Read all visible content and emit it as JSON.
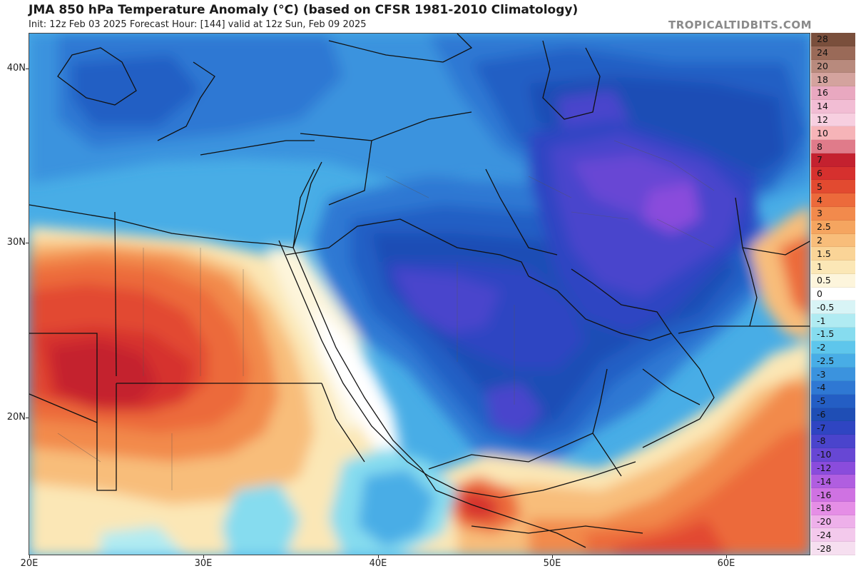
{
  "header": {
    "title": "JMA 850 hPa Temperature Anomaly (°C) (based on CFSR 1981-2010 Climatology)",
    "subtitle": "Init: 12z Feb 03 2025   Forecast Hour: [144]   valid at 12z Sun, Feb 09 2025",
    "watermark": "TROPICALTIDBITS.COM"
  },
  "axes": {
    "lat_labels": [
      "40N",
      "30N",
      "20N"
    ],
    "lon_labels": [
      "20E",
      "30E",
      "40E",
      "50E",
      "60E"
    ]
  },
  "colorbar": {
    "levels": [
      {
        "label": "28",
        "color": "#7a4f3c"
      },
      {
        "label": "24",
        "color": "#9a6a58"
      },
      {
        "label": "20",
        "color": "#b88a7d"
      },
      {
        "label": "18",
        "color": "#d4a39e"
      },
      {
        "label": "16",
        "color": "#e9a8c0"
      },
      {
        "label": "14",
        "color": "#f2bdd4"
      },
      {
        "label": "12",
        "color": "#f7cfe0"
      },
      {
        "label": "10",
        "color": "#f6b4b8"
      },
      {
        "label": "8",
        "color": "#e07b8a"
      },
      {
        "label": "7",
        "color": "#c4212f"
      },
      {
        "label": "6",
        "color": "#d6302e"
      },
      {
        "label": "5",
        "color": "#e24a30"
      },
      {
        "label": "4",
        "color": "#ec6a3b"
      },
      {
        "label": "3",
        "color": "#f28a4c"
      },
      {
        "label": "2.5",
        "color": "#f5a560"
      },
      {
        "label": "2",
        "color": "#f8bd7a"
      },
      {
        "label": "1.5",
        "color": "#fad497"
      },
      {
        "label": "1",
        "color": "#fbe7b6"
      },
      {
        "label": "0.5",
        "color": "#fdf5dc"
      },
      {
        "label": "0",
        "color": "#ffffff"
      },
      {
        "label": "-0.5",
        "color": "#d8f4f6"
      },
      {
        "label": "-1",
        "color": "#b0ebf2"
      },
      {
        "label": "-1.5",
        "color": "#86dcef"
      },
      {
        "label": "-2",
        "color": "#5ec6ec"
      },
      {
        "label": "-2.5",
        "color": "#48ade6"
      },
      {
        "label": "-3",
        "color": "#3b93de"
      },
      {
        "label": "-4",
        "color": "#2f78d3"
      },
      {
        "label": "-5",
        "color": "#245ec4"
      },
      {
        "label": "-6",
        "color": "#1f4eb5"
      },
      {
        "label": "-7",
        "color": "#2f45c2"
      },
      {
        "label": "-8",
        "color": "#4a44cc"
      },
      {
        "label": "-10",
        "color": "#6747d4"
      },
      {
        "label": "-12",
        "color": "#8a4cdc"
      },
      {
        "label": "-14",
        "color": "#b05ee0"
      },
      {
        "label": "-16",
        "color": "#cf72e2"
      },
      {
        "label": "-18",
        "color": "#e58ee6"
      },
      {
        "label": "-20",
        "color": "#eeb0ea"
      },
      {
        "label": "-24",
        "color": "#f3c9ec"
      },
      {
        "label": "-28",
        "color": "#f6dff0"
      }
    ]
  }
}
